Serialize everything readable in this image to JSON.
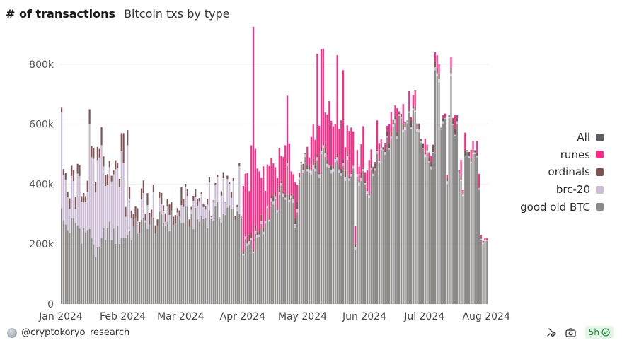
{
  "header": {
    "title": "# of transactions",
    "subtitle": "Bitcoin txs by type"
  },
  "legend": [
    {
      "label": "All",
      "color": "#5b5e63"
    },
    {
      "label": "runes",
      "color": "#ff2a86"
    },
    {
      "label": "ordinals",
      "color": "#7d5353"
    },
    {
      "label": "brc-20",
      "color": "#cbbdd4"
    },
    {
      "label": "good old BTC",
      "color": "#8c8a89"
    }
  ],
  "footer": {
    "author": "@cryptokoryo_research",
    "refresh": "5h"
  },
  "chart_data": {
    "type": "bar",
    "stacked": true,
    "title": "# of transactions",
    "subtitle": "Bitcoin txs by type",
    "x_ticks": [
      "Jan 2024",
      "Feb 2024",
      "Mar 2024",
      "Apr 2024",
      "May 2024",
      "Jun 2024",
      "Jul 2024",
      "Aug 2024"
    ],
    "y_ticks": [
      "0",
      "200k",
      "400k",
      "600k",
      "800k"
    ],
    "ylim": [
      0,
      920000
    ],
    "n_days": 214,
    "series_order": [
      "good old BTC",
      "brc-20",
      "ordinals",
      "runes"
    ],
    "colors": {
      "good old BTC": "#8c8a89",
      "brc-20": "#cbbdd4",
      "ordinals": "#7d5353",
      "runes": "#ff2a86"
    },
    "btc_waypoints": [
      [
        0,
        280
      ],
      [
        3,
        250
      ],
      [
        7,
        270
      ],
      [
        10,
        240
      ],
      [
        14,
        260
      ],
      [
        18,
        150
      ],
      [
        22,
        250
      ],
      [
        26,
        230
      ],
      [
        30,
        225
      ],
      [
        34,
        240
      ],
      [
        38,
        255
      ],
      [
        44,
        265
      ],
      [
        50,
        270
      ],
      [
        56,
        280
      ],
      [
        62,
        290
      ],
      [
        68,
        280
      ],
      [
        74,
        295
      ],
      [
        80,
        305
      ],
      [
        86,
        310
      ],
      [
        90,
        315
      ],
      [
        91,
        180
      ],
      [
        96,
        190
      ],
      [
        100,
        260
      ],
      [
        105,
        310
      ],
      [
        110,
        360
      ],
      [
        114,
        330
      ],
      [
        118,
        280
      ],
      [
        120,
        480
      ],
      [
        124,
        420
      ],
      [
        128,
        440
      ],
      [
        132,
        460
      ],
      [
        136,
        480
      ],
      [
        140,
        440
      ],
      [
        146,
        450
      ],
      [
        150,
        420
      ],
      [
        154,
        380
      ],
      [
        158,
        500
      ],
      [
        164,
        540
      ],
      [
        170,
        600
      ],
      [
        176,
        620
      ],
      [
        180,
        560
      ],
      [
        184,
        460
      ],
      [
        188,
        500
      ],
      [
        190,
        620
      ],
      [
        196,
        580
      ],
      [
        200,
        400
      ],
      [
        204,
        520
      ],
      [
        208,
        480
      ],
      [
        212,
        220
      ]
    ],
    "brc_waypoints": [
      [
        0,
        150
      ],
      [
        4,
        90
      ],
      [
        10,
        120
      ],
      [
        14,
        200
      ],
      [
        18,
        250
      ],
      [
        22,
        190
      ],
      [
        26,
        220
      ],
      [
        30,
        90
      ],
      [
        34,
        60
      ],
      [
        40,
        40
      ],
      [
        46,
        20
      ],
      [
        52,
        15
      ],
      [
        58,
        20
      ],
      [
        64,
        30
      ],
      [
        70,
        20
      ],
      [
        76,
        30
      ],
      [
        80,
        70
      ],
      [
        84,
        50
      ],
      [
        88,
        40
      ],
      [
        90,
        40
      ],
      [
        91,
        8
      ],
      [
        130,
        10
      ],
      [
        160,
        8
      ],
      [
        213,
        4
      ]
    ],
    "ord_waypoints": [
      [
        0,
        15
      ],
      [
        6,
        40
      ],
      [
        10,
        20
      ],
      [
        14,
        30
      ],
      [
        20,
        40
      ],
      [
        24,
        20
      ],
      [
        30,
        30
      ],
      [
        36,
        35
      ],
      [
        44,
        30
      ],
      [
        52,
        25
      ],
      [
        60,
        20
      ],
      [
        70,
        15
      ],
      [
        80,
        10
      ],
      [
        90,
        15
      ],
      [
        100,
        10
      ],
      [
        120,
        12
      ],
      [
        150,
        10
      ],
      [
        180,
        10
      ],
      [
        213,
        10
      ]
    ],
    "rune_waypoints": [
      [
        0,
        0
      ],
      [
        89,
        0
      ],
      [
        90,
        0
      ],
      [
        91,
        180
      ],
      [
        94,
        200
      ],
      [
        96,
        340
      ],
      [
        98,
        230
      ],
      [
        100,
        150
      ],
      [
        104,
        140
      ],
      [
        108,
        120
      ],
      [
        112,
        160
      ],
      [
        116,
        120
      ],
      [
        118,
        60
      ],
      [
        119,
        40
      ],
      [
        122,
        40
      ],
      [
        126,
        90
      ],
      [
        130,
        150
      ],
      [
        134,
        170
      ],
      [
        137,
        160
      ],
      [
        138,
        120
      ],
      [
        140,
        140
      ],
      [
        143,
        110
      ],
      [
        146,
        130
      ],
      [
        150,
        90
      ],
      [
        154,
        60
      ],
      [
        158,
        50
      ],
      [
        160,
        20
      ],
      [
        162,
        10
      ],
      [
        165,
        25
      ],
      [
        170,
        20
      ],
      [
        174,
        15
      ],
      [
        180,
        10
      ],
      [
        190,
        8
      ],
      [
        200,
        5
      ],
      [
        213,
        3
      ]
    ],
    "overrides": [
      {
        "day": 96,
        "btc": 170,
        "brc": 5,
        "ord": 5,
        "runes": 745
      },
      {
        "day": 113,
        "btc": 460,
        "brc": 10,
        "ord": 10,
        "runes": 215
      },
      {
        "day": 128,
        "btc": 480,
        "brc": 10,
        "ord": 10,
        "runes": 335
      },
      {
        "day": 130,
        "btc": 500,
        "brc": 10,
        "ord": 10,
        "runes": 330
      },
      {
        "day": 131,
        "btc": 520,
        "brc": 10,
        "ord": 10,
        "runes": 312
      },
      {
        "day": 138,
        "btc": 480,
        "brc": 10,
        "ord": 10,
        "runes": 330
      },
      {
        "day": 141,
        "btc": 460,
        "brc": 10,
        "ord": 10,
        "runes": 300
      },
      {
        "day": 147,
        "btc": 180,
        "brc": 10,
        "ord": 10,
        "runes": 60
      },
      {
        "day": 187,
        "btc": 780,
        "brc": 10,
        "ord": 20,
        "runes": 30
      },
      {
        "day": 188,
        "btc": 760,
        "brc": 10,
        "ord": 20,
        "runes": 40
      },
      {
        "day": 189,
        "btc": 740,
        "brc": 10,
        "ord": 20,
        "runes": 30
      },
      {
        "day": 191,
        "btc": 600,
        "brc": 10,
        "ord": 10,
        "runes": 10
      },
      {
        "day": 193,
        "btc": 400,
        "brc": 10,
        "ord": 10,
        "runes": 10
      },
      {
        "day": 195,
        "btc": 760,
        "brc": 10,
        "ord": 20,
        "runes": 35
      },
      {
        "day": 198,
        "btc": 600,
        "brc": 10,
        "ord": 10,
        "runes": 10
      },
      {
        "day": 201,
        "btc": 360,
        "brc": 5,
        "ord": 5,
        "runes": 10
      },
      {
        "day": 205,
        "btc": 470,
        "brc": 5,
        "ord": 10,
        "runes": 30
      },
      {
        "day": 206,
        "btc": 500,
        "brc": 5,
        "ord": 10,
        "runes": 30
      },
      {
        "day": 208,
        "btc": 490,
        "brc": 5,
        "ord": 10,
        "runes": 40
      },
      {
        "day": 210,
        "btc": 215,
        "brc": 3,
        "ord": 3,
        "runes": 10
      },
      {
        "day": 211,
        "btc": 200,
        "brc": 3,
        "ord": 3,
        "runes": 5
      },
      {
        "day": 212,
        "btc": 210,
        "brc": 3,
        "ord": 3,
        "runes": 5
      },
      {
        "day": 213,
        "btc": 210,
        "brc": 3,
        "ord": 3,
        "runes": 4
      },
      {
        "day": 0,
        "btc": 320,
        "brc": 320,
        "ord": 15,
        "runes": 0
      },
      {
        "day": 1,
        "btc": 280,
        "brc": 150,
        "ord": 20,
        "runes": 0
      },
      {
        "day": 12,
        "btc": 240,
        "brc": 100,
        "ord": 20,
        "runes": 0
      },
      {
        "day": 14,
        "btc": 250,
        "brc": 350,
        "ord": 50,
        "runes": 0
      },
      {
        "day": 20,
        "btc": 220,
        "brc": 310,
        "ord": 60,
        "runes": 0
      },
      {
        "day": 30,
        "btc": 220,
        "brc": 290,
        "ord": 60,
        "runes": 0
      },
      {
        "day": 31,
        "btc": 220,
        "brc": 250,
        "ord": 100,
        "runes": 0
      },
      {
        "day": 33,
        "btc": 230,
        "brc": 300,
        "ord": 50,
        "runes": 0
      },
      {
        "day": 89,
        "btc": 300,
        "brc": 160,
        "ord": 10,
        "runes": 0
      },
      {
        "day": 81,
        "btc": 300,
        "brc": 120,
        "ord": 20,
        "runes": 0
      },
      {
        "day": 43,
        "btc": 250,
        "brc": 80,
        "ord": 40,
        "runes": 0
      },
      {
        "day": 60,
        "btc": 270,
        "brc": 60,
        "ord": 60,
        "runes": 0
      }
    ]
  }
}
